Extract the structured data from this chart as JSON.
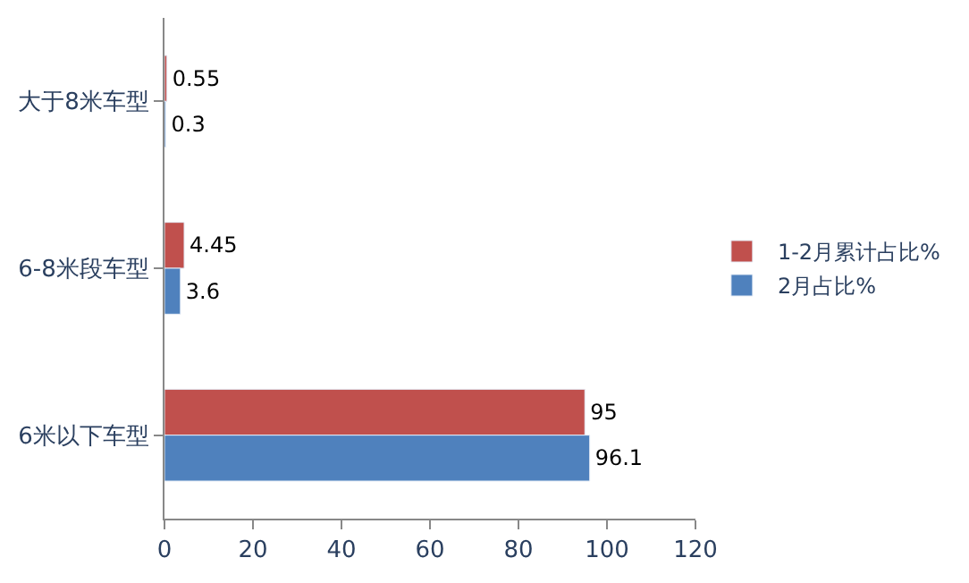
{
  "chart_data": {
    "type": "bar",
    "orientation": "horizontal",
    "categories": [
      "大于8米车型",
      "6-8米段车型",
      "6米以下车型"
    ],
    "series": [
      {
        "name": "1-2月累计占比%",
        "color": "#c0504d",
        "values": [
          0.55,
          4.45,
          95
        ]
      },
      {
        "name": "2月占比%",
        "color": "#4f81bd",
        "values": [
          0.3,
          3.6,
          96.1
        ]
      }
    ],
    "xlim": [
      0,
      120
    ],
    "xticks": [
      0,
      20,
      40,
      60,
      80,
      100,
      120
    ],
    "legend": "right",
    "data_labels": true
  }
}
